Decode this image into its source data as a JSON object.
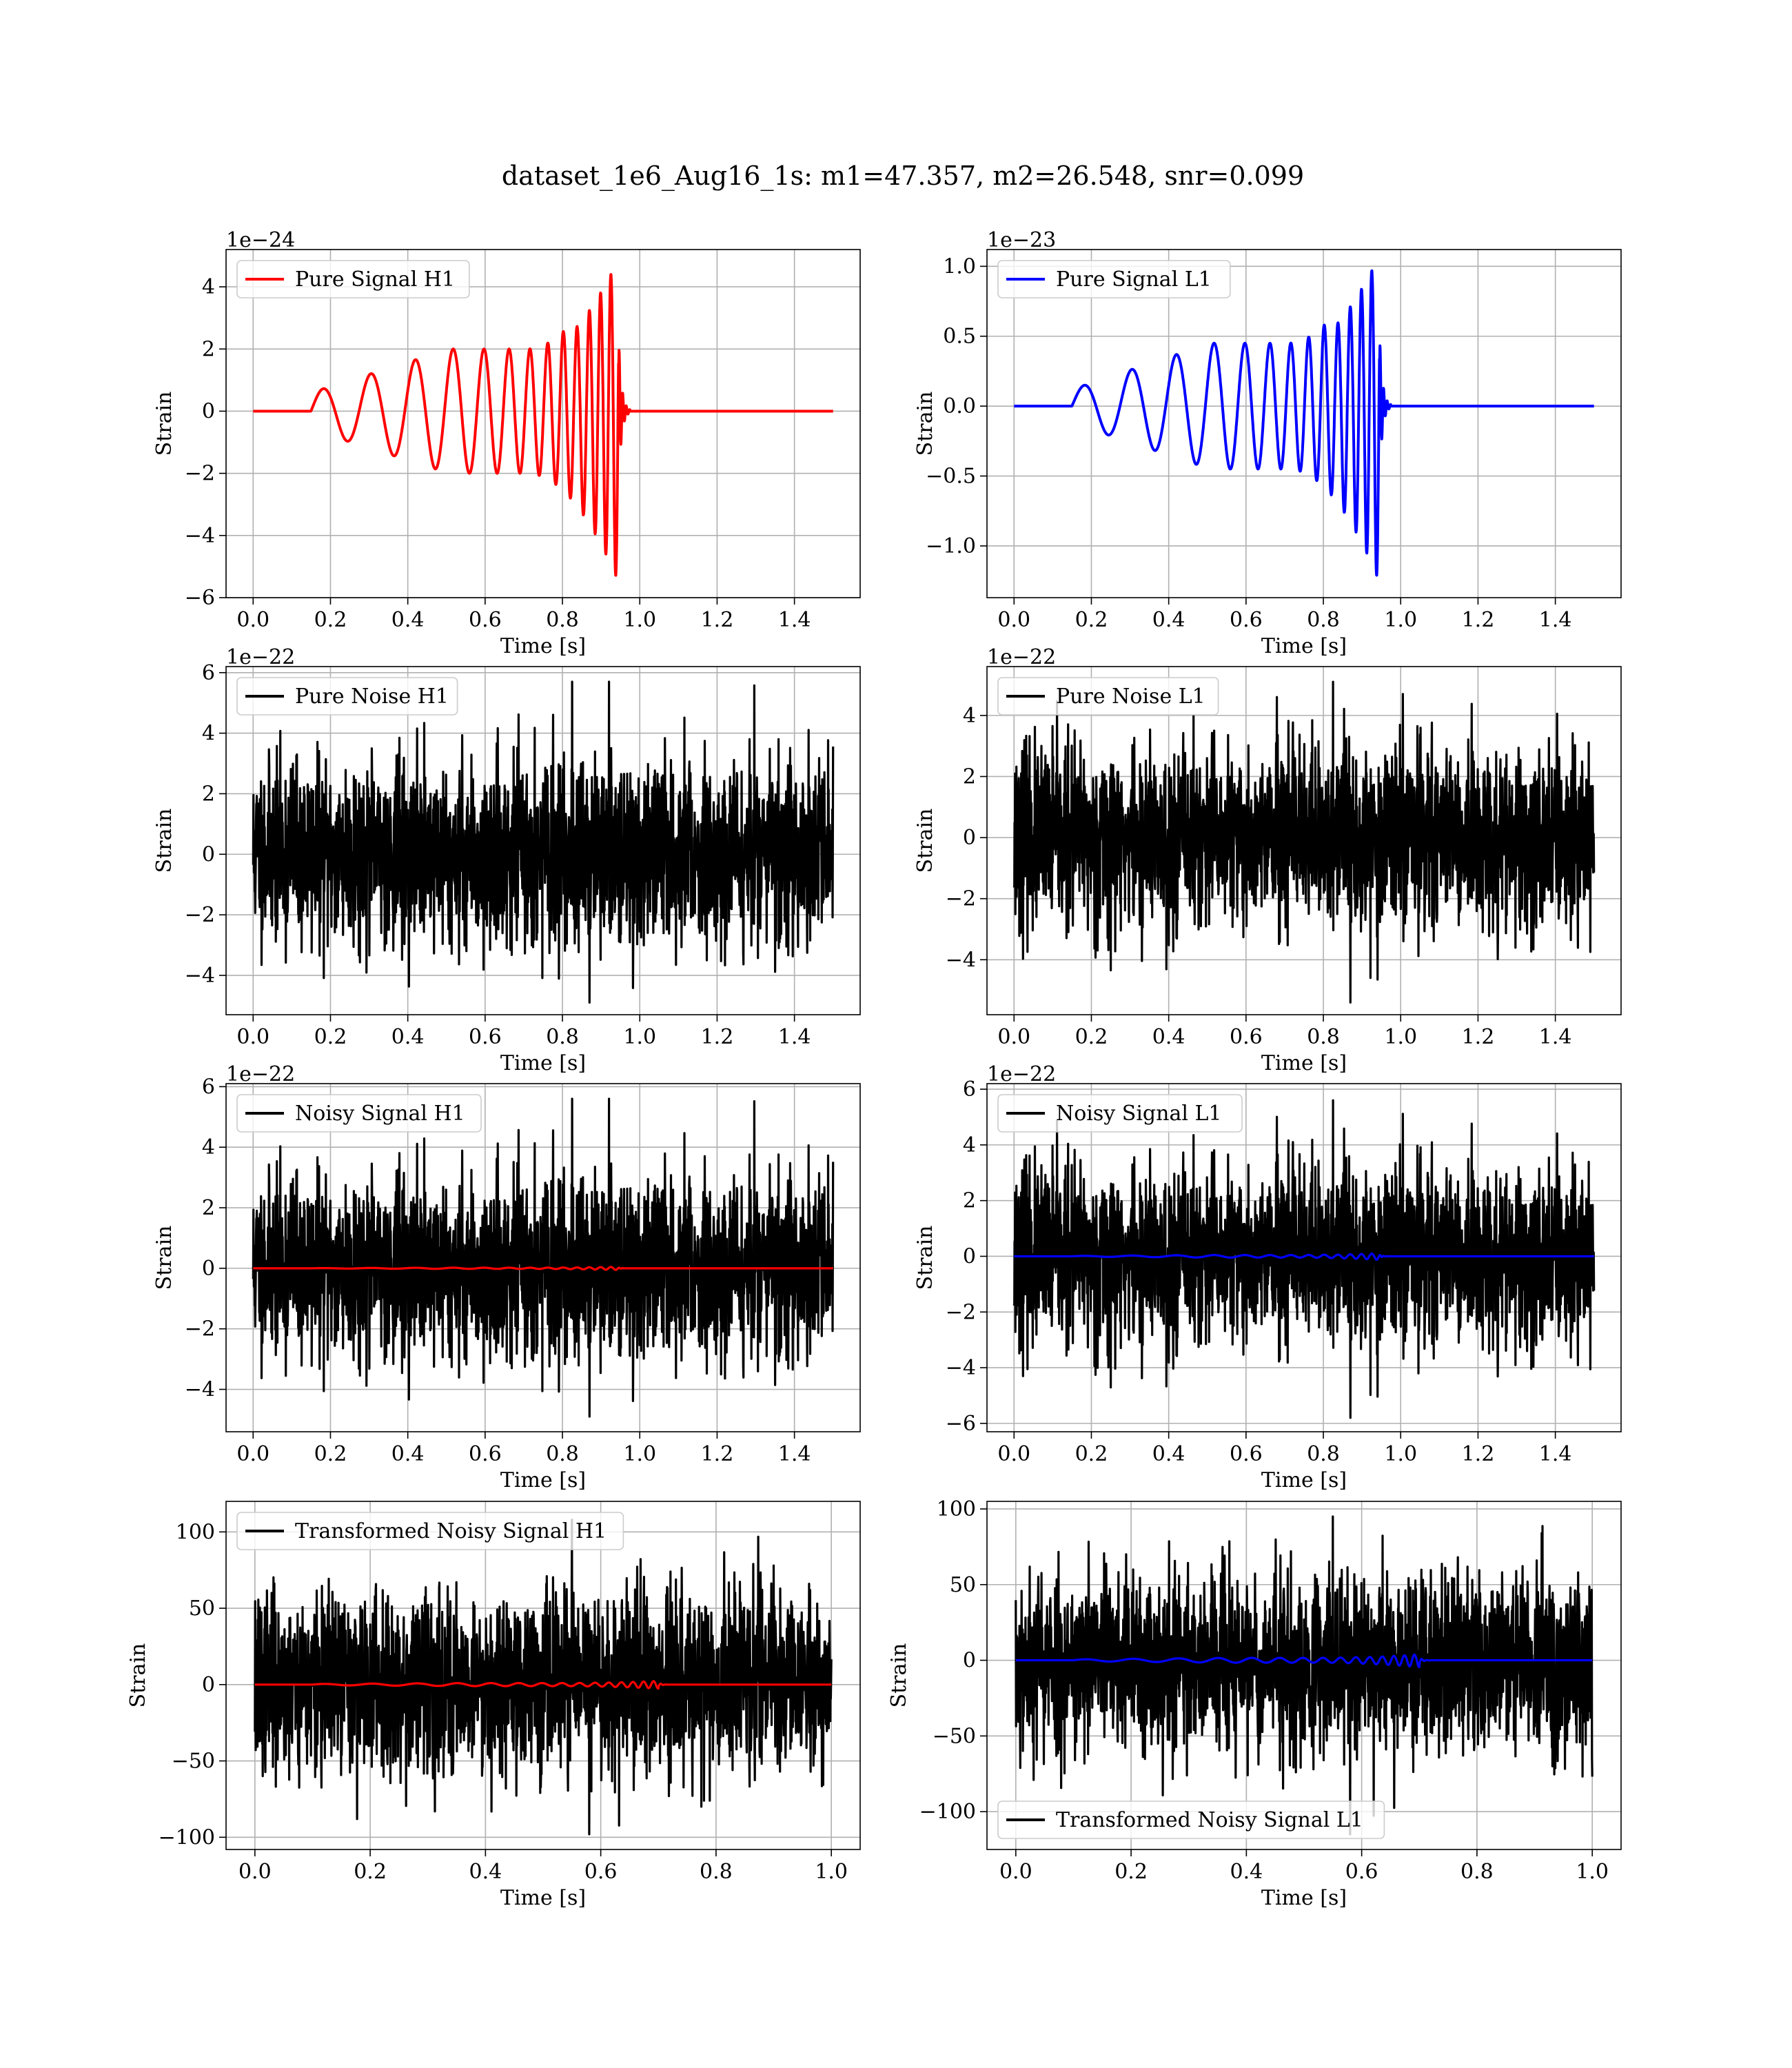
{
  "figure": {
    "title": "dataset_1e6_Aug16_1s: m1=47.357, m2=26.548, snr=0.099"
  },
  "colors": {
    "h1_signal": "#ff0000",
    "l1_signal": "#0000ff",
    "noise": "#000000",
    "grid": "#b0b0b0",
    "frame": "#000000",
    "legend_border": "#cccccc"
  },
  "chart_data": [
    {
      "id": "pure-signal-h1",
      "type": "line",
      "xlabel": "Time [s]",
      "ylabel": "Strain",
      "offset_text": "1e−24",
      "xlim": [
        -0.07,
        1.57
      ],
      "ylim": [
        -6,
        5.2
      ],
      "xticks": [
        0.0,
        0.2,
        0.4,
        0.6,
        0.8,
        1.0,
        1.2,
        1.4
      ],
      "yticks": [
        -6,
        -4,
        -2,
        0,
        2,
        4
      ],
      "grid": true,
      "legend_position": "top-left",
      "series": [
        {
          "name": "Pure Signal H1",
          "color": "#ff0000",
          "kind": "chirp",
          "t_start": 0.0,
          "t_end": 1.5,
          "t_on": 0.15,
          "t_merge": 0.945,
          "amp_start": 0.6,
          "amp_mid": 2.0,
          "amp_peak_pos": 4.9,
          "amp_peak_neg": -5.5
        }
      ]
    },
    {
      "id": "pure-signal-l1",
      "type": "line",
      "xlabel": "Time [s]",
      "ylabel": "Strain",
      "offset_text": "1e−23",
      "xlim": [
        -0.07,
        1.57
      ],
      "ylim": [
        -1.37,
        1.12
      ],
      "xticks": [
        0.0,
        0.2,
        0.4,
        0.6,
        0.8,
        1.0,
        1.2,
        1.4
      ],
      "yticks": [
        -1.0,
        -0.5,
        0.0,
        0.5,
        1.0
      ],
      "grid": true,
      "legend_position": "top-left",
      "series": [
        {
          "name": "Pure Signal L1",
          "color": "#0000ff",
          "kind": "chirp",
          "t_start": 0.0,
          "t_end": 1.5,
          "t_on": 0.15,
          "t_merge": 0.945,
          "amp_start": 0.12,
          "amp_mid": 0.45,
          "amp_peak_pos": 1.08,
          "amp_peak_neg": -1.26
        }
      ]
    },
    {
      "id": "pure-noise-h1",
      "type": "line",
      "xlabel": "Time [s]",
      "ylabel": "Strain",
      "offset_text": "1e−22",
      "xlim": [
        -0.07,
        1.57
      ],
      "ylim": [
        -5.3,
        6.2
      ],
      "xticks": [
        0.0,
        0.2,
        0.4,
        0.6,
        0.8,
        1.0,
        1.2,
        1.4
      ],
      "yticks": [
        -4,
        -2,
        0,
        2,
        4,
        6
      ],
      "grid": true,
      "legend_position": "top-left",
      "series": [
        {
          "name": "Pure Noise H1",
          "color": "#000000",
          "kind": "noise",
          "t_start": 0.0,
          "t_end": 1.5,
          "max": 5.7,
          "min": -4.9,
          "seed": 11
        }
      ]
    },
    {
      "id": "pure-noise-l1",
      "type": "line",
      "xlabel": "Time [s]",
      "ylabel": "Strain",
      "offset_text": "1e−22",
      "xlim": [
        -0.07,
        1.57
      ],
      "ylim": [
        -5.8,
        5.6
      ],
      "xticks": [
        0.0,
        0.2,
        0.4,
        0.6,
        0.8,
        1.0,
        1.2,
        1.4
      ],
      "yticks": [
        -4,
        -2,
        0,
        2,
        4
      ],
      "grid": true,
      "legend_position": "top-left",
      "series": [
        {
          "name": "Pure Noise L1",
          "color": "#000000",
          "kind": "noise",
          "t_start": 0.0,
          "t_end": 1.5,
          "max": 5.1,
          "min": -5.4,
          "seed": 23
        }
      ]
    },
    {
      "id": "noisy-signal-h1",
      "type": "line",
      "xlabel": "Time [s]",
      "ylabel": "Strain",
      "offset_text": "1e−22",
      "xlim": [
        -0.07,
        1.57
      ],
      "ylim": [
        -5.4,
        6.1
      ],
      "xticks": [
        0.0,
        0.2,
        0.4,
        0.6,
        0.8,
        1.0,
        1.2,
        1.4
      ],
      "yticks": [
        -4,
        -2,
        0,
        2,
        4,
        6
      ],
      "grid": true,
      "legend_position": "top-left",
      "series": [
        {
          "name": "Noisy Signal H1",
          "color": "#000000",
          "kind": "noise",
          "t_start": 0.0,
          "t_end": 1.5,
          "max": 5.6,
          "min": -4.9,
          "seed": 11
        },
        {
          "name": "",
          "color": "#ff0000",
          "kind": "chirp",
          "t_start": 0.0,
          "t_end": 1.5,
          "t_on": 0.15,
          "t_merge": 0.945,
          "amp_start": 0.006,
          "amp_mid": 0.02,
          "amp_peak_pos": 0.05,
          "amp_peak_neg": -0.055
        }
      ]
    },
    {
      "id": "noisy-signal-l1",
      "type": "line",
      "xlabel": "Time [s]",
      "ylabel": "Strain",
      "offset_text": "1e−22",
      "xlim": [
        -0.07,
        1.57
      ],
      "ylim": [
        -6.3,
        6.2
      ],
      "xticks": [
        0.0,
        0.2,
        0.4,
        0.6,
        0.8,
        1.0,
        1.2,
        1.4
      ],
      "yticks": [
        -6,
        -4,
        -2,
        0,
        2,
        4,
        6
      ],
      "grid": true,
      "legend_position": "top-left",
      "series": [
        {
          "name": "Noisy Signal L1",
          "color": "#000000",
          "kind": "noise",
          "t_start": 0.0,
          "t_end": 1.5,
          "max": 5.6,
          "min": -5.8,
          "seed": 23
        },
        {
          "name": "",
          "color": "#0000ff",
          "kind": "chirp",
          "t_start": 0.0,
          "t_end": 1.5,
          "t_on": 0.15,
          "t_merge": 0.945,
          "amp_start": 0.012,
          "amp_mid": 0.045,
          "amp_peak_pos": 0.108,
          "amp_peak_neg": -0.126
        }
      ]
    },
    {
      "id": "transformed-noisy-signal-h1",
      "type": "line",
      "xlabel": "Time [s]",
      "ylabel": "Strain",
      "offset_text": "",
      "xlim": [
        -0.05,
        1.05
      ],
      "ylim": [
        -108,
        120
      ],
      "xticks": [
        0.0,
        0.2,
        0.4,
        0.6,
        0.8,
        1.0
      ],
      "yticks": [
        -100,
        -50,
        0,
        50,
        100
      ],
      "grid": true,
      "legend_position": "top-left",
      "series": [
        {
          "name": "Transformed Noisy Signal H1",
          "color": "#000000",
          "kind": "noise",
          "t_start": 0.0,
          "t_end": 1.0,
          "max": 108,
          "min": -98,
          "seed": 37
        },
        {
          "name": "",
          "color": "#ff0000",
          "kind": "chirp",
          "t_start": 0.0,
          "t_end": 1.0,
          "t_on": 0.1,
          "t_merge": 0.7,
          "amp_start": 0.4,
          "amp_mid": 1.0,
          "amp_peak_pos": 2.4,
          "amp_peak_neg": -2.6
        }
      ]
    },
    {
      "id": "transformed-noisy-signal-l1",
      "type": "line",
      "xlabel": "Time [s]",
      "ylabel": "Strain",
      "offset_text": "",
      "xlim": [
        -0.05,
        1.05
      ],
      "ylim": [
        -125,
        105
      ],
      "xticks": [
        0.0,
        0.2,
        0.4,
        0.6,
        0.8,
        1.0
      ],
      "yticks": [
        -100,
        -50,
        0,
        50,
        100
      ],
      "grid": true,
      "legend_position": "bottom-left",
      "series": [
        {
          "name": "Transformed Noisy Signal L1",
          "color": "#000000",
          "kind": "noise",
          "t_start": 0.0,
          "t_end": 1.0,
          "max": 95,
          "min": -115,
          "seed": 53
        },
        {
          "name": "",
          "color": "#0000ff",
          "kind": "chirp",
          "t_start": 0.0,
          "t_end": 1.0,
          "t_on": 0.1,
          "t_merge": 0.7,
          "amp_start": 0.6,
          "amp_mid": 1.6,
          "amp_peak_pos": 4.0,
          "amp_peak_neg": -4.5
        }
      ]
    }
  ]
}
